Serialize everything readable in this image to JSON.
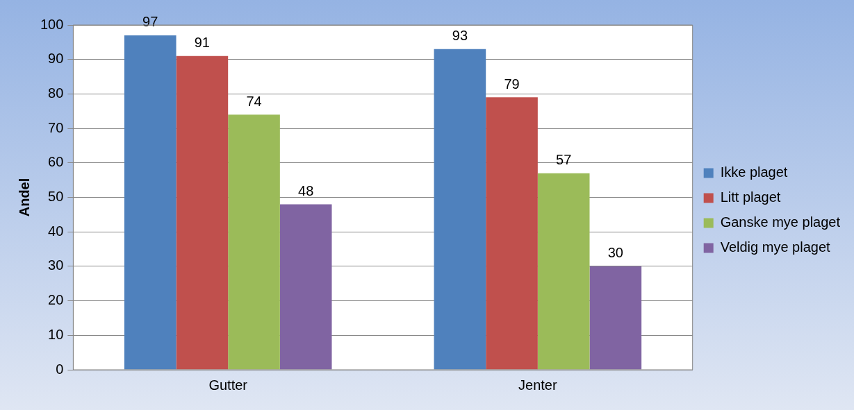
{
  "chart_data": {
    "type": "bar",
    "ylabel": "Andel",
    "categories": [
      "Gutter",
      "Jenter"
    ],
    "series": [
      {
        "name": "Ikke plaget",
        "color": "#4f81bd",
        "values": [
          97,
          93
        ]
      },
      {
        "name": "Litt plaget",
        "color": "#c0504d",
        "values": [
          91,
          79
        ]
      },
      {
        "name": "Ganske mye plaget",
        "color": "#9bbb59",
        "values": [
          74,
          57
        ]
      },
      {
        "name": "Veldig mye plaget",
        "color": "#8064a2",
        "values": [
          48,
          30
        ]
      }
    ],
    "ylim": [
      0,
      100
    ],
    "yticks": [
      0,
      10,
      20,
      30,
      40,
      50,
      60,
      70,
      80,
      90,
      100
    ],
    "grid": "y",
    "legend": "right",
    "data_labels": true
  }
}
